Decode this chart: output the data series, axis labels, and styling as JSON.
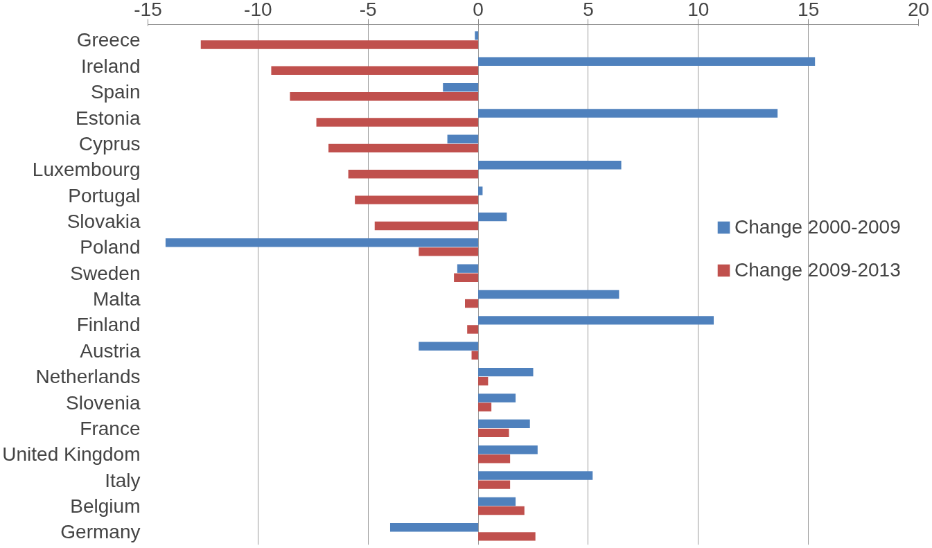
{
  "chart_data": {
    "type": "bar",
    "orientation": "horizontal",
    "categories": [
      "Greece",
      "Ireland",
      "Spain",
      "Estonia",
      "Cyprus",
      "Luxembourg",
      "Portugal",
      "Slovakia",
      "Poland",
      "Sweden",
      "Malta",
      "Finland",
      "Austria",
      "Netherlands",
      "Slovenia",
      "France",
      "United Kingdom",
      "Italy",
      "Belgium",
      "Germany"
    ],
    "series": [
      {
        "name": "Change 2000-2009",
        "color": "#4f81bd",
        "values": [
          -0.15,
          15.3,
          -1.6,
          13.6,
          -1.4,
          6.5,
          0.2,
          1.3,
          -14.2,
          -0.95,
          6.4,
          10.7,
          -2.7,
          2.5,
          1.7,
          2.35,
          2.7,
          5.2,
          1.7,
          -4.0
        ]
      },
      {
        "name": "Change 2009-2013",
        "color": "#c0504d",
        "values": [
          -12.6,
          -9.4,
          -8.55,
          -7.35,
          -6.8,
          -5.9,
          -5.6,
          -4.7,
          -2.7,
          -1.1,
          -0.6,
          -0.5,
          -0.3,
          0.45,
          0.6,
          1.4,
          1.45,
          1.45,
          2.1,
          2.6
        ]
      }
    ],
    "xlim": [
      -15,
      20
    ],
    "xticks": [
      -15,
      -10,
      -5,
      0,
      5,
      10,
      15,
      20
    ],
    "grid": "x",
    "legend": "right"
  }
}
